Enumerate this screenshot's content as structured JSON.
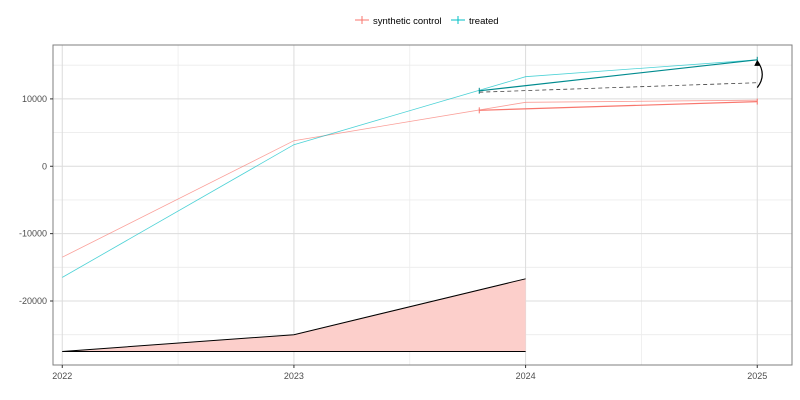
{
  "chart_data": {
    "type": "line",
    "title": "",
    "xlabel": "",
    "ylabel": "",
    "xlim": [
      2021.96,
      2025.15
    ],
    "ylim": [
      -29500,
      18000
    ],
    "x_ticks": [
      2022,
      2023,
      2024,
      2025
    ],
    "x_tick_labels": [
      "2022",
      "2023",
      "2024",
      "2025"
    ],
    "y_ticks": [
      -20000,
      -10000,
      0,
      10000
    ],
    "y_tick_labels": [
      "-20000",
      "-10000",
      "0",
      "10000"
    ],
    "grid": true,
    "legend_position": "top",
    "colors": {
      "synthetic_control": "#F8766D",
      "treated": "#00BFC4",
      "effect_fill": "#FCCFCB",
      "annotation": "#000000",
      "grid_major": "#dcdcdc",
      "grid_minor": "#ececec",
      "panel_border": "#7f7f7f"
    },
    "series": [
      {
        "name": "synthetic control",
        "x": [
          2022,
          2023,
          2024,
          2025
        ],
        "values": [
          -13500,
          3800,
          9500,
          9800
        ]
      },
      {
        "name": "treated",
        "x": [
          2022,
          2023,
          2024,
          2025
        ],
        "values": [
          -16500,
          3200,
          13300,
          15800
        ]
      }
    ],
    "post_period_lines": {
      "synthetic_control": {
        "x": [
          2023.8,
          2025
        ],
        "values": [
          8300,
          9600
        ]
      },
      "treated": {
        "x": [
          2023.8,
          2025
        ],
        "values": [
          11200,
          15800
        ]
      },
      "counterfactual_dashed": {
        "x": [
          2023.8,
          2025
        ],
        "values": [
          11000,
          12400
        ]
      }
    },
    "effect_area": {
      "x": [
        2022,
        2023,
        2024
      ],
      "lower": [
        -27500,
        -27500,
        -27500
      ],
      "upper": [
        -27500,
        -25000,
        -16700
      ]
    }
  }
}
